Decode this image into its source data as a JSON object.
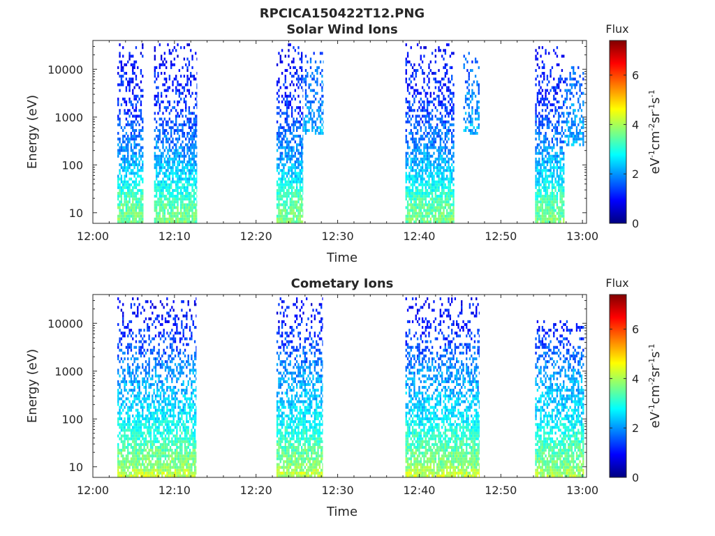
{
  "figure_title": "RPCICA150422T12.PNG",
  "colors": {
    "frame": "#262626",
    "background": "#ffffff"
  },
  "chart_data": [
    {
      "type": "heatmap",
      "title": "Solar Wind Ions",
      "xlabel": "Time",
      "ylabel": "Energy (eV)",
      "x_ticks": [
        "12:00",
        "12:10",
        "12:20",
        "12:30",
        "12:40",
        "12:50",
        "13:00"
      ],
      "xlim_minutes": [
        0,
        60.5
      ],
      "y_scale": "log",
      "y_ticks": [
        10,
        100,
        1000,
        10000
      ],
      "y_tick_labels": [
        "10",
        "100",
        "1000",
        "10000"
      ],
      "ylim": [
        6,
        40000
      ],
      "colorbar": {
        "title": "Flux",
        "label": "eV-1cm-2sr-1s-1",
        "ticks": [
          0,
          2,
          4,
          6
        ],
        "range": [
          0,
          7.4
        ],
        "colormap": "jet"
      },
      "bursts": [
        {
          "start_min": 3.0,
          "end_min": 6.2,
          "flux_by_energy": [
            [
              8,
              3.6
            ],
            [
              15,
              3.4
            ],
            [
              25,
              3.2
            ],
            [
              50,
              2.6
            ],
            [
              100,
              2.3
            ],
            [
              300,
              1.8
            ],
            [
              1000,
              1.4
            ],
            [
              3000,
              1.2
            ],
            [
              10000,
              1.0
            ],
            [
              30000,
              0.9
            ]
          ]
        },
        {
          "start_min": 7.5,
          "end_min": 12.7,
          "flux_by_energy": [
            [
              8,
              3.6
            ],
            [
              15,
              3.4
            ],
            [
              25,
              3.0
            ],
            [
              50,
              2.6
            ],
            [
              100,
              2.3
            ],
            [
              300,
              1.8
            ],
            [
              1000,
              1.4
            ],
            [
              3000,
              1.2
            ],
            [
              10000,
              1.0
            ],
            [
              30000,
              0.9
            ]
          ]
        },
        {
          "start_min": 22.5,
          "end_min": 25.7,
          "flux_by_energy": [
            [
              8,
              3.6
            ],
            [
              15,
              3.4
            ],
            [
              25,
              3.2
            ],
            [
              50,
              2.6
            ],
            [
              100,
              2.2
            ],
            [
              300,
              1.8
            ],
            [
              1000,
              1.4
            ],
            [
              3000,
              1.2
            ],
            [
              10000,
              1.0
            ],
            [
              30000,
              0.9
            ]
          ]
        },
        {
          "start_min": 25.8,
          "end_min": 28.2,
          "flux_by_energy": [
            [
              500,
              2.2
            ],
            [
              1000,
              2.0
            ],
            [
              3000,
              1.8
            ],
            [
              10000,
              1.6
            ],
            [
              20000,
              1.4
            ]
          ]
        },
        {
          "start_min": 38.3,
          "end_min": 44.3,
          "flux_by_energy": [
            [
              8,
              3.6
            ],
            [
              15,
              3.4
            ],
            [
              25,
              3.1
            ],
            [
              50,
              2.6
            ],
            [
              100,
              2.3
            ],
            [
              300,
              1.8
            ],
            [
              1000,
              1.5
            ],
            [
              3000,
              1.2
            ],
            [
              10000,
              1.1
            ],
            [
              30000,
              0.9
            ]
          ]
        },
        {
          "start_min": 45.4,
          "end_min": 47.4,
          "flux_by_energy": [
            [
              500,
              2.2
            ],
            [
              1000,
              2.0
            ],
            [
              3000,
              1.8
            ],
            [
              10000,
              1.6
            ],
            [
              20000,
              1.4
            ]
          ]
        },
        {
          "start_min": 54.2,
          "end_min": 57.8,
          "flux_by_energy": [
            [
              8,
              3.6
            ],
            [
              15,
              3.4
            ],
            [
              25,
              3.1
            ],
            [
              50,
              2.6
            ],
            [
              100,
              2.3
            ],
            [
              300,
              1.8
            ],
            [
              1000,
              1.5
            ],
            [
              3000,
              1.2
            ],
            [
              10000,
              1.1
            ],
            [
              30000,
              0.9
            ]
          ]
        },
        {
          "start_min": 57.8,
          "end_min": 60.2,
          "flux_by_energy": [
            [
              300,
              2.2
            ],
            [
              1000,
              2.0
            ],
            [
              3000,
              1.8
            ],
            [
              10000,
              1.6
            ]
          ]
        }
      ]
    },
    {
      "type": "heatmap",
      "title": "Cometary Ions",
      "xlabel": "Time",
      "ylabel": "Energy (eV)",
      "x_ticks": [
        "12:00",
        "12:10",
        "12:20",
        "12:30",
        "12:40",
        "12:50",
        "13:00"
      ],
      "xlim_minutes": [
        0,
        60.5
      ],
      "y_scale": "log",
      "y_ticks": [
        10,
        100,
        1000,
        10000
      ],
      "y_tick_labels": [
        "10",
        "100",
        "1000",
        "10000"
      ],
      "ylim": [
        6,
        40000
      ],
      "colorbar": {
        "title": "Flux",
        "label": "eV-1cm-2sr-1s-1",
        "ticks": [
          0,
          2,
          4,
          6
        ],
        "range": [
          0,
          7.4
        ],
        "colormap": "jet"
      },
      "bursts": [
        {
          "start_min": 3.0,
          "end_min": 12.7,
          "flux_by_energy": [
            [
              7,
              4.2
            ],
            [
              10,
              3.8
            ],
            [
              20,
              3.5
            ],
            [
              50,
              3.0
            ],
            [
              100,
              2.7
            ],
            [
              300,
              2.3
            ],
            [
              1000,
              2.0
            ],
            [
              3000,
              1.5
            ],
            [
              10000,
              1.1
            ],
            [
              30000,
              0.9
            ]
          ]
        },
        {
          "start_min": 22.5,
          "end_min": 28.2,
          "flux_by_energy": [
            [
              7,
              4.2
            ],
            [
              10,
              3.8
            ],
            [
              20,
              3.5
            ],
            [
              50,
              3.0
            ],
            [
              100,
              2.7
            ],
            [
              300,
              2.3
            ],
            [
              1000,
              2.0
            ],
            [
              3000,
              1.5
            ],
            [
              10000,
              1.1
            ],
            [
              30000,
              0.9
            ]
          ]
        },
        {
          "start_min": 38.3,
          "end_min": 47.4,
          "flux_by_energy": [
            [
              7,
              4.2
            ],
            [
              10,
              3.8
            ],
            [
              20,
              3.5
            ],
            [
              50,
              3.0
            ],
            [
              100,
              2.7
            ],
            [
              300,
              2.3
            ],
            [
              1000,
              2.0
            ],
            [
              3000,
              1.5
            ],
            [
              10000,
              1.1
            ],
            [
              30000,
              0.9
            ]
          ]
        },
        {
          "start_min": 54.2,
          "end_min": 60.2,
          "flux_by_energy": [
            [
              7,
              4.0
            ],
            [
              10,
              3.7
            ],
            [
              20,
              3.4
            ],
            [
              50,
              3.0
            ],
            [
              100,
              2.6
            ],
            [
              300,
              2.3
            ],
            [
              1000,
              2.0
            ],
            [
              3000,
              1.5
            ],
            [
              10000,
              1.1
            ]
          ]
        }
      ]
    }
  ]
}
